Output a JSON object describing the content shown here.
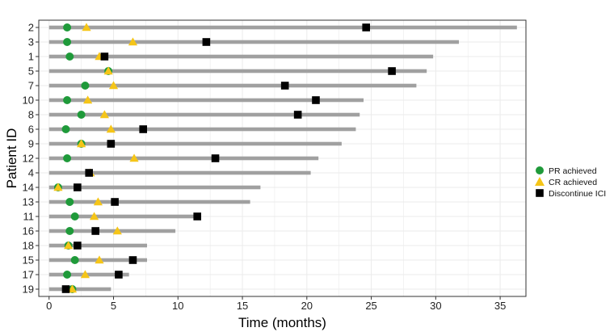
{
  "chart_data": {
    "type": "swimmer",
    "title": "",
    "xlabel": "Time (months)",
    "ylabel": "Patient ID",
    "xlim": [
      -0.8,
      37
    ],
    "xticks": [
      0,
      5,
      10,
      15,
      20,
      25,
      30,
      35
    ],
    "grid": true,
    "legend_position": "right",
    "colors": {
      "bar": "#a0a0a0",
      "pr": "#1f9a3a",
      "cr": "#f5c518",
      "discontinue": "#000000",
      "grid": "#ebebeb"
    },
    "legend": [
      {
        "key": "pr",
        "label": "PR achieved",
        "marker": "circle"
      },
      {
        "key": "cr",
        "label": "CR achieved",
        "marker": "triangle"
      },
      {
        "key": "discontinue",
        "label": "Discontinue ICI",
        "marker": "square"
      }
    ],
    "patients": [
      {
        "id": "2",
        "duration": 36.3,
        "pr": 1.4,
        "cr": 2.9,
        "discontinue": 24.6
      },
      {
        "id": "3",
        "duration": 31.8,
        "pr": 1.4,
        "cr": 6.5,
        "discontinue": 12.2
      },
      {
        "id": "1",
        "duration": 29.8,
        "pr": 1.6,
        "cr": 3.9,
        "discontinue": 4.3
      },
      {
        "id": "5",
        "duration": 29.3,
        "pr": 4.6,
        "cr": 4.6,
        "discontinue": 26.6
      },
      {
        "id": "7",
        "duration": 28.5,
        "pr": 2.8,
        "cr": 5.0,
        "discontinue": 18.3
      },
      {
        "id": "10",
        "duration": 24.4,
        "pr": 1.4,
        "cr": 3.0,
        "discontinue": 20.7
      },
      {
        "id": "8",
        "duration": 24.1,
        "pr": 2.5,
        "cr": 4.3,
        "discontinue": 19.3
      },
      {
        "id": "6",
        "duration": 23.8,
        "pr": 1.3,
        "cr": 4.8,
        "discontinue": 7.3
      },
      {
        "id": "9",
        "duration": 22.7,
        "pr": 2.5,
        "cr": 2.5,
        "discontinue": 4.8
      },
      {
        "id": "12",
        "duration": 20.9,
        "pr": 1.4,
        "cr": 6.6,
        "discontinue": 12.9
      },
      {
        "id": "4",
        "duration": 20.3,
        "pr": null,
        "cr": 3.2,
        "discontinue": 3.1
      },
      {
        "id": "14",
        "duration": 16.4,
        "pr": 0.7,
        "cr": 0.7,
        "discontinue": 2.2
      },
      {
        "id": "13",
        "duration": 15.6,
        "pr": 1.6,
        "cr": 3.8,
        "discontinue": 5.1
      },
      {
        "id": "11",
        "duration": 11.4,
        "pr": 2.0,
        "cr": 3.5,
        "discontinue": 11.5
      },
      {
        "id": "16",
        "duration": 9.8,
        "pr": 1.6,
        "cr": 5.3,
        "discontinue": 3.6
      },
      {
        "id": "18",
        "duration": 7.6,
        "pr": 1.5,
        "cr": 1.5,
        "discontinue": 2.2
      },
      {
        "id": "15",
        "duration": 7.6,
        "pr": 2.0,
        "cr": 3.9,
        "discontinue": 6.5
      },
      {
        "id": "17",
        "duration": 6.2,
        "pr": 1.4,
        "cr": 2.8,
        "discontinue": 5.4
      },
      {
        "id": "19",
        "duration": 4.8,
        "pr": 1.8,
        "cr": 1.8,
        "discontinue": 1.3
      }
    ]
  }
}
